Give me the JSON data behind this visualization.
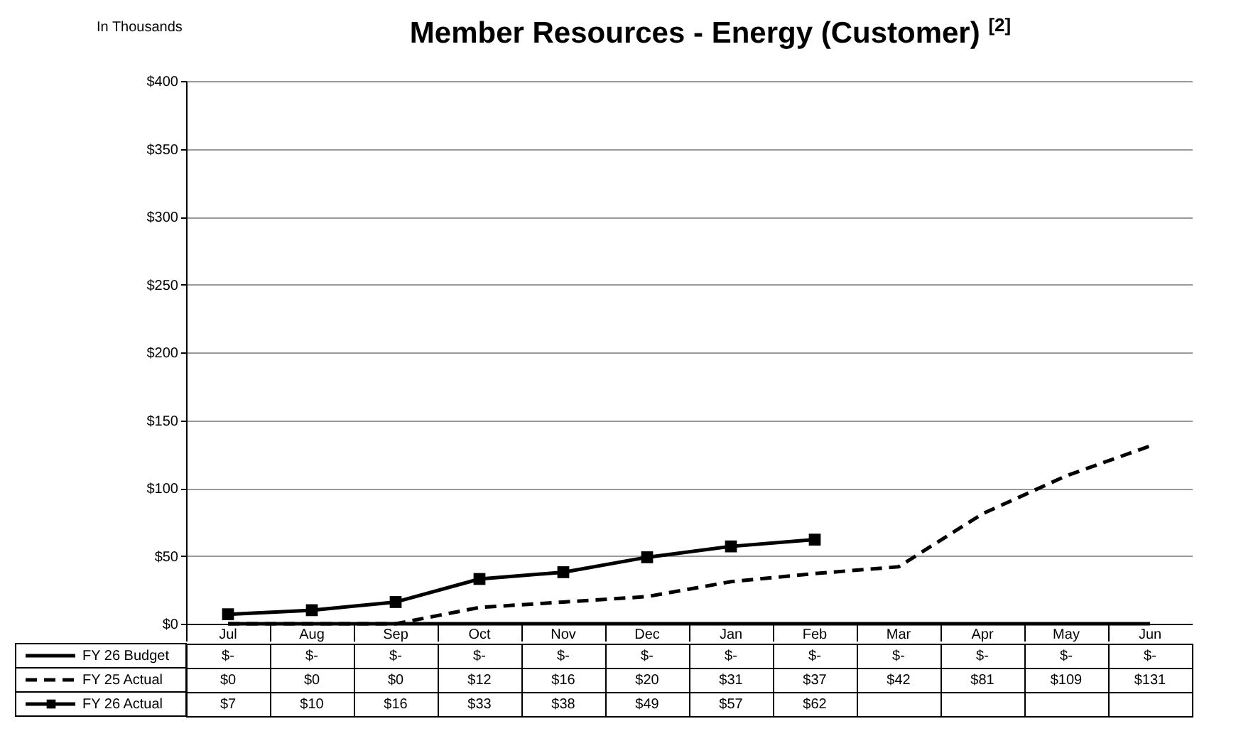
{
  "chart_data": {
    "type": "line",
    "title": "Member Resources - Energy (Customer) $^{[2]}$",
    "annotations": [
      "In Thousands"
    ],
    "categories": [
      "Jul",
      "Aug",
      "Sep",
      "Oct",
      "Nov",
      "Dec",
      "Jan",
      "Feb",
      "Mar",
      "Apr",
      "May",
      "Jun"
    ],
    "ylim": [
      0,
      400
    ],
    "yticks": [
      {
        "value": 0,
        "label": "$0"
      },
      {
        "value": 50,
        "label": "$50"
      },
      {
        "value": 100,
        "label": "$100"
      },
      {
        "value": 150,
        "label": "$150"
      },
      {
        "value": 200,
        "label": "$200"
      },
      {
        "value": 250,
        "label": "$250"
      },
      {
        "value": 300,
        "label": "$300"
      },
      {
        "value": 350,
        "label": "$350"
      },
      {
        "value": 400,
        "label": "$400"
      }
    ],
    "grid": "y",
    "legend": "bottom left",
    "series": [
      {
        "name": "FY 26 Budget",
        "color": "#000000",
        "line_style": "solid",
        "marker": "none",
        "values": [
          0,
          0,
          0,
          0,
          0,
          0,
          0,
          0,
          0,
          0,
          0,
          0
        ],
        "value_labels": [
          "$-",
          "$-",
          "$-",
          "$-",
          "$-",
          "$-",
          "$-",
          "$-",
          "$-",
          "$-",
          "$-",
          "$-"
        ]
      },
      {
        "name": "FY 25 Actual",
        "color": "#000000",
        "line_style": "dashed",
        "marker": "none",
        "values": [
          0,
          0,
          0,
          12,
          16,
          20,
          31,
          37,
          42,
          81,
          109,
          131
        ],
        "value_labels": [
          "$0",
          "$0",
          "$0",
          "$12",
          "$16",
          "$20",
          "$31",
          "$37",
          "$42",
          "$81",
          "$109",
          "$131"
        ]
      },
      {
        "name": "FY 26 Actual",
        "color": "#000000",
        "line_style": "solid",
        "marker": "square",
        "values": [
          7,
          10,
          16,
          33,
          38,
          49,
          57,
          62,
          null,
          null,
          null,
          null
        ],
        "value_labels": [
          "$7",
          "$10",
          "$16",
          "$33",
          "$38",
          "$49",
          "$57",
          "$62",
          null,
          null,
          null,
          null
        ]
      }
    ]
  }
}
